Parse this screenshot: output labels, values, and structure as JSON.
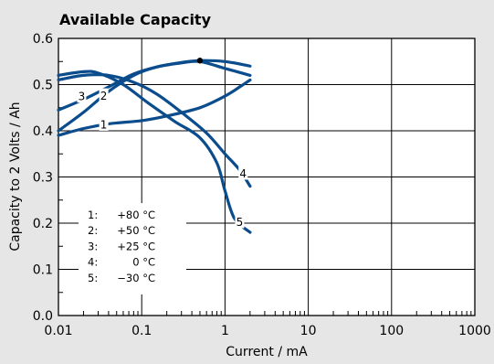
{
  "chart_data": {
    "type": "line",
    "title": "Available Capacity",
    "xlabel": "Current / mA",
    "ylabel": "Capacity to 2 Volts / Ah",
    "x_scale": "log",
    "xlim": [
      0.01,
      1000
    ],
    "ylim": [
      0.0,
      0.6
    ],
    "x_ticks": [
      "0.01",
      "0.1",
      "1",
      "10",
      "100",
      "1000"
    ],
    "y_ticks": [
      "0.0",
      "0.1",
      "0.2",
      "0.3",
      "0.4",
      "0.5",
      "0.6"
    ],
    "grid": true,
    "legend_position": "lower-left",
    "background_color": "#e6e6e6",
    "plot_background_color": "#ffffff",
    "line_color": "#0a4c8c",
    "series": [
      {
        "label": "1",
        "legend_index": "1:",
        "legend_temp": "+80 °C",
        "x": [
          0.01,
          0.02,
          0.04,
          0.1,
          0.2,
          0.5,
          1.0,
          1.5,
          2.0
        ],
        "y": [
          0.39,
          0.405,
          0.415,
          0.422,
          0.432,
          0.45,
          0.475,
          0.495,
          0.51
        ]
      },
      {
        "label": "2",
        "legend_index": "2:",
        "legend_temp": "+50 °C",
        "x": [
          0.01,
          0.02,
          0.04,
          0.08,
          0.15,
          0.3,
          0.5,
          1.0,
          2.0
        ],
        "y": [
          0.445,
          0.468,
          0.495,
          0.523,
          0.538,
          0.548,
          0.552,
          0.55,
          0.54
        ]
      },
      {
        "label": "3",
        "legend_index": "3:",
        "legend_temp": "+25 °C",
        "x": [
          0.01,
          0.02,
          0.04,
          0.08,
          0.15,
          0.3,
          0.5,
          1.0,
          2.0
        ],
        "y": [
          0.4,
          0.44,
          0.485,
          0.52,
          0.538,
          0.547,
          0.55,
          0.535,
          0.52
        ]
      },
      {
        "label": "4",
        "legend_index": "4:",
        "legend_temp": "0 °C",
        "x": [
          0.01,
          0.02,
          0.04,
          0.08,
          0.15,
          0.3,
          0.6,
          1.0,
          1.5,
          2.0
        ],
        "y": [
          0.51,
          0.52,
          0.52,
          0.505,
          0.48,
          0.44,
          0.395,
          0.35,
          0.315,
          0.28
        ]
      },
      {
        "label": "5",
        "legend_index": "5:",
        "legend_temp": "−30 °C",
        "x": [
          0.01,
          0.02,
          0.03,
          0.06,
          0.12,
          0.25,
          0.5,
          0.8,
          1.0,
          1.3,
          2.0
        ],
        "y": [
          0.52,
          0.528,
          0.525,
          0.5,
          0.46,
          0.42,
          0.385,
          0.33,
          0.27,
          0.21,
          0.18
        ]
      }
    ],
    "marker_point": {
      "x": 0.5,
      "y": 0.552
    }
  }
}
